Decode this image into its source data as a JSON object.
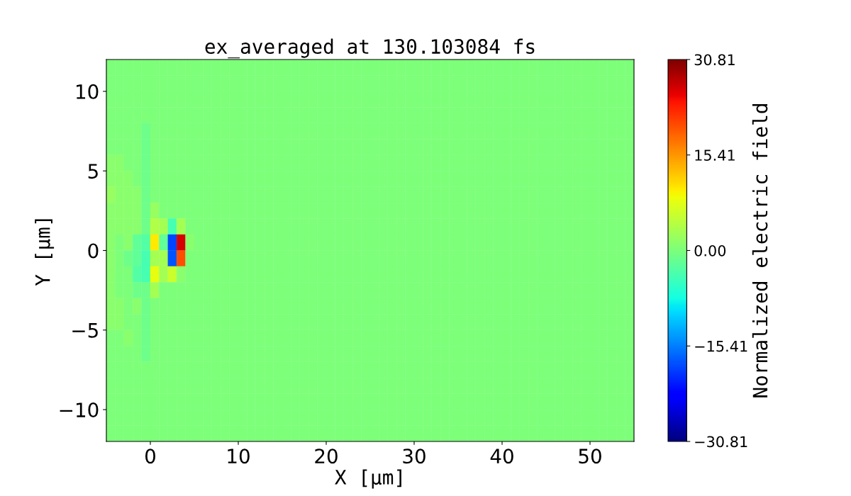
{
  "chart_data": {
    "type": "heatmap",
    "title": "ex_averaged at 130.103084 fs",
    "xlabel": "X [μm]",
    "ylabel": "Y [μm]",
    "clabel": "Normalized electric field",
    "cells": [
      [
        0,
        0,
        0,
        0,
        0,
        0,
        0,
        0,
        0,
        0,
        0,
        0,
        0,
        0,
        0,
        0,
        0,
        0,
        0,
        0,
        0,
        0,
        0,
        0,
        0,
        0,
        0,
        0,
        0,
        0,
        0,
        0,
        0,
        0,
        0,
        0,
        0,
        0,
        0,
        0,
        0,
        0,
        0,
        0,
        0,
        0,
        0,
        0,
        0,
        0,
        0,
        0,
        0,
        0,
        0,
        0,
        0,
        0,
        0,
        0
      ],
      [
        0,
        0,
        0,
        0,
        0,
        0,
        0,
        0,
        0,
        0,
        0,
        0,
        0,
        0,
        0,
        0,
        0,
        0,
        0,
        0,
        0,
        0,
        0,
        0,
        0,
        0,
        0,
        0,
        0,
        0,
        0,
        0,
        0,
        0,
        0,
        0,
        0,
        0,
        0,
        0,
        0,
        0,
        0,
        0,
        0,
        0,
        0,
        0,
        0,
        0,
        0,
        0,
        0,
        0,
        0,
        0,
        0,
        0,
        0,
        0
      ],
      [
        0,
        0,
        0,
        0,
        0,
        0,
        0,
        0,
        0,
        0,
        0,
        0,
        0,
        0,
        0,
        0,
        0,
        0,
        0,
        0,
        0,
        0,
        0,
        0,
        0,
        0,
        0,
        0,
        0,
        0,
        0,
        0,
        0,
        0,
        0,
        0,
        0,
        0,
        0,
        0,
        0,
        0,
        0,
        0,
        0,
        0,
        0,
        0,
        0,
        0,
        0,
        0,
        0,
        0,
        0,
        0,
        0,
        0,
        0,
        0
      ],
      [
        0,
        0,
        0,
        0,
        0,
        0,
        0,
        0,
        0,
        0,
        0,
        0,
        0,
        0,
        0,
        0,
        0,
        0,
        0,
        0,
        0,
        0,
        0,
        0,
        0,
        0,
        0,
        0,
        0,
        0,
        0,
        0,
        0,
        0,
        0,
        0,
        0,
        0,
        0,
        0,
        0,
        0,
        0,
        0,
        0,
        0,
        0,
        0,
        0,
        0,
        0,
        0,
        0,
        0,
        0,
        0,
        0,
        0,
        0,
        0
      ],
      [
        0,
        0,
        0,
        0,
        -1,
        0,
        0,
        0,
        0,
        0,
        0,
        0,
        0,
        0,
        0,
        0,
        0,
        0,
        0,
        0,
        0,
        0,
        0,
        0,
        0,
        0,
        0,
        0,
        0,
        0,
        0,
        0,
        0,
        0,
        0,
        0,
        0,
        0,
        0,
        0,
        0,
        0,
        0,
        0,
        0,
        0,
        0,
        0,
        0,
        0,
        0,
        0,
        0,
        0,
        0,
        0,
        0,
        0,
        0,
        0
      ],
      [
        0,
        0,
        0,
        0,
        -1,
        0,
        0,
        0,
        0,
        0,
        0,
        0,
        0,
        0,
        0,
        0,
        0,
        0,
        0,
        0,
        0,
        0,
        0,
        0,
        0,
        0,
        0,
        0,
        0,
        0,
        0,
        0,
        0,
        0,
        0,
        0,
        0,
        0,
        0,
        0,
        0,
        0,
        0,
        0,
        0,
        0,
        0,
        0,
        0,
        0,
        0,
        0,
        0,
        0,
        0,
        0,
        0,
        0,
        0,
        0
      ],
      [
        1,
        1,
        0,
        0,
        -1,
        0,
        0,
        0,
        0,
        0,
        0,
        0,
        0,
        0,
        0,
        0,
        0,
        0,
        0,
        0,
        0,
        0,
        0,
        0,
        0,
        0,
        0,
        0,
        0,
        0,
        0,
        0,
        0,
        0,
        0,
        0,
        0,
        0,
        0,
        0,
        0,
        0,
        0,
        0,
        0,
        0,
        0,
        0,
        0,
        0,
        0,
        0,
        0,
        0,
        0,
        0,
        0,
        0,
        0,
        0
      ],
      [
        1,
        1,
        1,
        0,
        -1,
        0,
        0,
        0,
        0,
        0,
        0,
        0,
        0,
        0,
        0,
        0,
        0,
        0,
        0,
        0,
        0,
        0,
        0,
        0,
        0,
        0,
        0,
        0,
        0,
        0,
        0,
        0,
        0,
        0,
        0,
        0,
        0,
        0,
        0,
        0,
        0,
        0,
        0,
        0,
        0,
        0,
        0,
        0,
        0,
        0,
        0,
        0,
        0,
        0,
        0,
        0,
        0,
        0,
        0,
        0
      ],
      [
        2,
        1,
        1,
        1,
        -1,
        0,
        0,
        0,
        0,
        0,
        0,
        0,
        0,
        0,
        0,
        0,
        0,
        0,
        0,
        0,
        0,
        0,
        0,
        0,
        0,
        0,
        0,
        0,
        0,
        0,
        0,
        0,
        0,
        0,
        0,
        0,
        0,
        0,
        0,
        0,
        0,
        0,
        0,
        0,
        0,
        0,
        0,
        0,
        0,
        0,
        0,
        0,
        0,
        0,
        0,
        0,
        0,
        0,
        0,
        0
      ],
      [
        1,
        1,
        1,
        1,
        -1,
        2,
        0,
        0,
        0,
        0,
        0,
        0,
        0,
        0,
        0,
        0,
        0,
        0,
        0,
        0,
        0,
        0,
        0,
        0,
        0,
        0,
        0,
        0,
        0,
        0,
        0,
        0,
        0,
        0,
        0,
        0,
        0,
        0,
        0,
        0,
        0,
        0,
        0,
        0,
        0,
        0,
        0,
        0,
        0,
        0,
        0,
        0,
        0,
        0,
        0,
        0,
        0,
        0,
        0,
        0
      ],
      [
        1,
        1,
        1,
        1,
        -1,
        4,
        3,
        -4,
        3,
        0,
        0,
        0,
        0,
        0,
        0,
        0,
        0,
        0,
        0,
        0,
        0,
        0,
        0,
        0,
        0,
        0,
        0,
        0,
        0,
        0,
        0,
        0,
        0,
        0,
        0,
        0,
        0,
        0,
        0,
        0,
        0,
        0,
        0,
        0,
        0,
        0,
        0,
        0,
        0,
        0,
        0,
        0,
        0,
        0,
        0,
        0,
        0,
        0,
        0,
        0
      ],
      [
        1,
        0,
        1,
        -2,
        -3,
        10,
        -2,
        -19,
        26,
        1,
        0,
        0,
        0,
        0,
        0,
        0,
        0,
        0,
        0,
        0,
        0,
        0,
        0,
        0,
        0,
        0,
        0,
        0,
        0,
        0,
        0,
        0,
        0,
        0,
        0,
        0,
        0,
        0,
        0,
        0,
        0,
        0,
        0,
        0,
        0,
        0,
        0,
        0,
        0,
        0,
        0,
        0,
        0,
        0,
        0,
        0,
        0,
        0,
        0,
        0
      ],
      [
        1,
        0,
        -1,
        -2,
        -4,
        3,
        3,
        -18,
        20,
        0,
        0,
        0,
        0,
        0,
        0,
        0,
        0,
        0,
        0,
        0,
        0,
        0,
        0,
        0,
        0,
        0,
        0,
        0,
        0,
        0,
        0,
        0,
        0,
        0,
        0,
        0,
        0,
        0,
        0,
        0,
        0,
        0,
        0,
        0,
        0,
        0,
        0,
        0,
        0,
        0,
        0,
        0,
        0,
        0,
        0,
        0,
        0,
        0,
        0,
        0
      ],
      [
        1,
        0,
        0,
        -3,
        -4,
        8,
        3,
        6,
        1,
        0,
        0,
        0,
        0,
        0,
        0,
        0,
        0,
        0,
        0,
        0,
        0,
        0,
        0,
        0,
        0,
        0,
        0,
        0,
        0,
        0,
        0,
        0,
        0,
        0,
        0,
        0,
        0,
        0,
        0,
        0,
        0,
        0,
        0,
        0,
        0,
        0,
        0,
        0,
        0,
        0,
        0,
        0,
        0,
        0,
        0,
        0,
        0,
        0,
        0,
        0
      ],
      [
        1,
        0,
        0,
        -1,
        -1,
        3,
        0,
        0,
        0,
        0,
        0,
        0,
        0,
        0,
        0,
        0,
        0,
        0,
        0,
        0,
        0,
        0,
        0,
        0,
        0,
        0,
        0,
        0,
        0,
        0,
        0,
        0,
        0,
        0,
        0,
        0,
        0,
        0,
        0,
        0,
        0,
        0,
        0,
        0,
        0,
        0,
        0,
        0,
        0,
        0,
        0,
        0,
        0,
        0,
        0,
        0,
        0,
        0,
        0,
        0
      ],
      [
        1,
        1,
        0,
        1,
        -1,
        0,
        0,
        0,
        0,
        0,
        0,
        0,
        0,
        0,
        0,
        0,
        0,
        0,
        0,
        0,
        0,
        0,
        0,
        0,
        0,
        0,
        0,
        0,
        0,
        0,
        0,
        0,
        0,
        0,
        0,
        0,
        0,
        0,
        0,
        0,
        0,
        0,
        0,
        0,
        0,
        0,
        0,
        0,
        0,
        0,
        0,
        0,
        0,
        0,
        0,
        0,
        0,
        0,
        0,
        0
      ],
      [
        1,
        1,
        0,
        0,
        -1,
        0,
        0,
        0,
        0,
        0,
        0,
        0,
        0,
        0,
        0,
        0,
        0,
        0,
        0,
        0,
        0,
        0,
        0,
        0,
        0,
        0,
        0,
        0,
        0,
        0,
        0,
        0,
        0,
        0,
        0,
        0,
        0,
        0,
        0,
        0,
        0,
        0,
        0,
        0,
        0,
        0,
        0,
        0,
        0,
        0,
        0,
        0,
        0,
        0,
        0,
        0,
        0,
        0,
        0,
        0
      ],
      [
        0,
        0,
        1,
        0,
        -1,
        0,
        0,
        0,
        0,
        0,
        0,
        0,
        0,
        0,
        0,
        0,
        0,
        0,
        0,
        0,
        0,
        0,
        0,
        0,
        0,
        0,
        0,
        0,
        0,
        0,
        0,
        0,
        0,
        0,
        0,
        0,
        0,
        0,
        0,
        0,
        0,
        0,
        0,
        0,
        0,
        0,
        0,
        0,
        0,
        0,
        0,
        0,
        0,
        0,
        0,
        0,
        0,
        0,
        0,
        0
      ],
      [
        0,
        0,
        0,
        0,
        -1,
        0,
        0,
        0,
        0,
        0,
        0,
        0,
        0,
        0,
        0,
        0,
        0,
        0,
        0,
        0,
        0,
        0,
        0,
        0,
        0,
        0,
        0,
        0,
        0,
        0,
        0,
        0,
        0,
        0,
        0,
        0,
        0,
        0,
        0,
        0,
        0,
        0,
        0,
        0,
        0,
        0,
        0,
        0,
        0,
        0,
        0,
        0,
        0,
        0,
        0,
        0,
        0,
        0,
        0,
        0
      ],
      [
        0,
        0,
        0,
        0,
        0,
        0,
        0,
        0,
        0,
        0,
        0,
        0,
        0,
        0,
        0,
        0,
        0,
        0,
        0,
        0,
        0,
        0,
        0,
        0,
        0,
        0,
        0,
        0,
        0,
        0,
        0,
        0,
        0,
        0,
        0,
        0,
        0,
        0,
        0,
        0,
        0,
        0,
        0,
        0,
        0,
        0,
        0,
        0,
        0,
        0,
        0,
        0,
        0,
        0,
        0,
        0,
        0,
        0,
        0,
        0
      ],
      [
        0,
        0,
        0,
        0,
        0,
        0,
        0,
        0,
        0,
        0,
        0,
        0,
        0,
        0,
        0,
        0,
        0,
        0,
        0,
        0,
        0,
        0,
        0,
        0,
        0,
        0,
        0,
        0,
        0,
        0,
        0,
        0,
        0,
        0,
        0,
        0,
        0,
        0,
        0,
        0,
        0,
        0,
        0,
        0,
        0,
        0,
        0,
        0,
        0,
        0,
        0,
        0,
        0,
        0,
        0,
        0,
        0,
        0,
        0,
        0
      ],
      [
        0,
        0,
        0,
        0,
        0,
        0,
        0,
        0,
        0,
        0,
        0,
        0,
        0,
        0,
        0,
        0,
        0,
        0,
        0,
        0,
        0,
        0,
        0,
        0,
        0,
        0,
        0,
        0,
        0,
        0,
        0,
        0,
        0,
        0,
        0,
        0,
        0,
        0,
        0,
        0,
        0,
        0,
        0,
        0,
        0,
        0,
        0,
        0,
        0,
        0,
        0,
        0,
        0,
        0,
        0,
        0,
        0,
        0,
        0,
        0
      ],
      [
        0,
        0,
        0,
        0,
        0,
        0,
        0,
        0,
        0,
        0,
        0,
        0,
        0,
        0,
        0,
        0,
        0,
        0,
        0,
        0,
        0,
        0,
        0,
        0,
        0,
        0,
        0,
        0,
        0,
        0,
        0,
        0,
        0,
        0,
        0,
        0,
        0,
        0,
        0,
        0,
        0,
        0,
        0,
        0,
        0,
        0,
        0,
        0,
        0,
        0,
        0,
        0,
        0,
        0,
        0,
        0,
        0,
        0,
        0,
        0
      ],
      [
        0,
        0,
        0,
        0,
        0,
        0,
        0,
        0,
        0,
        0,
        0,
        0,
        0,
        0,
        0,
        0,
        0,
        0,
        0,
        0,
        0,
        0,
        0,
        0,
        0,
        0,
        0,
        0,
        0,
        0,
        0,
        0,
        0,
        0,
        0,
        0,
        0,
        0,
        0,
        0,
        0,
        0,
        0,
        0,
        0,
        0,
        0,
        0,
        0,
        0,
        0,
        0,
        0,
        0,
        0,
        0,
        0,
        0,
        0,
        0
      ]
    ],
    "xlim": [
      -5,
      55
    ],
    "ylim": [
      -12,
      12
    ],
    "xticks": [
      0,
      10,
      20,
      30,
      40,
      50
    ],
    "yticks": [
      -10,
      -5,
      0,
      5,
      10
    ],
    "clim": [
      -30.81,
      30.81
    ],
    "cticks": [
      {
        "value": -30.81,
        "label": "−30.81"
      },
      {
        "value": -15.41,
        "label": "−15.41"
      },
      {
        "value": 0,
        "label": "0.00"
      },
      {
        "value": 15.41,
        "label": "15.41"
      },
      {
        "value": 30.81,
        "label": "30.81"
      }
    ],
    "grid": false
  }
}
